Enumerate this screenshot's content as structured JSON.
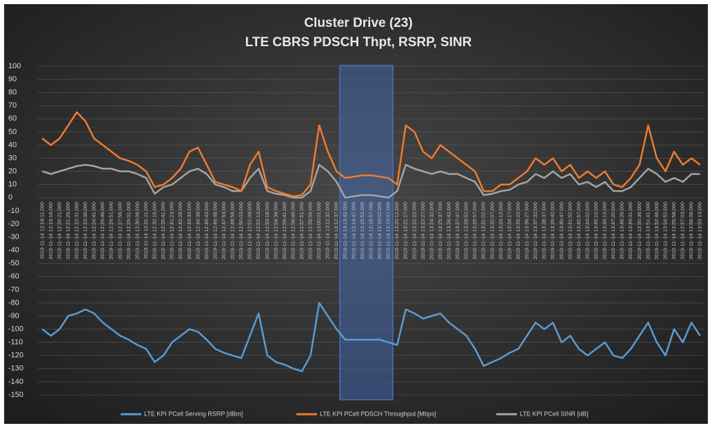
{
  "chart_data": {
    "type": "line",
    "title": "Cluster Drive (23)",
    "subtitle": "LTE CBRS PDSCH Thpt, RSRP, SINR",
    "categories": [
      "2019-11-14 12:18:11.000",
      "2019-11-14 12:19:16.000",
      "2019-11-14 12:20:21.000",
      "2019-11-14 12:21:26.000",
      "2019-11-14 12:22:31.000",
      "2019-11-14 12:23:36.000",
      "2019-11-14 12:24:41.000",
      "2019-11-14 12:25:46.000",
      "2019-11-14 12:26:51.000",
      "2019-11-14 12:27:56.000",
      "2019-11-14 12:29:01.000",
      "2019-11-14 12:30:06.000",
      "2019-11-14 12:31:11.000",
      "2019-11-14 12:32:16.000",
      "2019-11-14 12:35:41.000",
      "2019-11-14 12:41:23.000",
      "2019-11-14 12:42:28.000",
      "2019-11-14 12:43:33.000",
      "2019-11-14 12:44:38.000",
      "2019-11-14 12:45:43.000",
      "2019-11-14 12:46:48.000",
      "2019-11-14 12:47:53.000",
      "2019-11-14 12:48:58.000",
      "2019-11-14 12:50:03.000",
      "2019-11-14 12:51:08.000",
      "2019-11-14 12:52:13.000",
      "2019-11-14 12:53:18.000",
      "2019-11-14 12:54:36.000",
      "2019-11-14 12:55:41.000",
      "2019-11-14 12:56:46.000",
      "2019-11-14 12:57:51.000",
      "2019-11-14 12:58:56.000",
      "2019-11-14 13:00:01.000",
      "2019-11-14 13:11:32.000",
      "2019-11-14 13:12:37.000",
      "2019-11-14 13:13:42.000",
      "2019-11-14 13:14:47.000",
      "2019-11-14 13:15:52.000",
      "2019-11-14 13:16:57.000",
      "2019-11-14 13:18:02.000",
      "2019-11-14 13:19:07.000",
      "2019-11-14 13:20:12.000",
      "2019-11-14 13:21:17.000",
      "2019-11-14 13:22:22.000",
      "2019-11-14 13:23:27.000",
      "2019-11-14 13:24:32.000",
      "2019-11-14 13:25:37.000",
      "2019-11-14 13:26:42.000",
      "2019-11-14 13:27:47.000",
      "2019-11-14 13:28:52.000",
      "2019-11-14 13:29:57.000",
      "2019-11-14 13:31:02.000",
      "2019-11-14 13:32:07.000",
      "2019-11-14 13:33:12.000",
      "2019-11-14 13:34:17.000",
      "2019-11-14 13:35:22.000",
      "2019-11-14 13:36:27.000",
      "2019-11-14 13:37:32.000",
      "2019-11-14 13:38:37.000",
      "2019-11-14 13:39:42.000",
      "2019-11-14 13:40:47.000",
      "2019-11-14 13:41:52.000",
      "2019-11-14 13:42:57.000",
      "2019-11-14 13:44:02.000",
      "2019-11-14 13:45:10.000",
      "2019-11-14 13:46:15.000",
      "2019-11-14 13:47:20.000",
      "2019-11-14 13:48:26.000",
      "2019-11-14 13:49:31.000",
      "2019-11-14 13:50:36.000",
      "2019-11-14 13:51:41.000",
      "2019-11-14 13:52:46.000",
      "2019-11-14 13:54:52.000",
      "2019-11-14 13:55:58.000",
      "2019-11-14 13:57:03.000",
      "2019-11-14 13:58:08.000",
      "2019-11-14 13:59:13.000"
    ],
    "series": [
      {
        "name": "LTE KPI PCell Serving RSRP [dBm]",
        "color": "#5b9bd5",
        "values": [
          -100,
          -105,
          -100,
          -90,
          -88,
          -85,
          -88,
          -95,
          -100,
          -105,
          -108,
          -112,
          -115,
          -125,
          -120,
          -110,
          -105,
          -100,
          -102,
          -108,
          -115,
          -118,
          -120,
          -122,
          -105,
          -88,
          -120,
          -125,
          -127,
          -130,
          -132,
          -120,
          -80,
          -90,
          -100,
          -108,
          -108,
          -108,
          -108,
          -108,
          -110,
          -112,
          -85,
          -88,
          -92,
          -90,
          -88,
          -95,
          -100,
          -105,
          -115,
          -128,
          -125,
          -122,
          -118,
          -115,
          -105,
          -95,
          -100,
          -95,
          -110,
          -105,
          -115,
          -120,
          -115,
          -110,
          -120,
          -122,
          -115,
          -105,
          -95,
          -110,
          -120,
          -100,
          -110,
          -95,
          -105
        ]
      },
      {
        "name": "LTE KPI PCell PDSCH Throughput [Mbps]",
        "color": "#ed7d31",
        "values": [
          45,
          40,
          45,
          55,
          65,
          58,
          45,
          40,
          35,
          30,
          28,
          25,
          20,
          8,
          10,
          15,
          22,
          35,
          38,
          25,
          12,
          10,
          8,
          5,
          25,
          35,
          8,
          5,
          3,
          1,
          2,
          10,
          55,
          35,
          20,
          15,
          16,
          17,
          17,
          16,
          15,
          10,
          55,
          50,
          35,
          30,
          40,
          35,
          30,
          25,
          20,
          5,
          5,
          10,
          10,
          15,
          20,
          30,
          25,
          30,
          20,
          25,
          15,
          20,
          15,
          20,
          10,
          8,
          15,
          25,
          55,
          30,
          20,
          35,
          25,
          30,
          25
        ]
      },
      {
        "name": "LTE KPI PCell SINR [dB]",
        "color": "#a5a5a5",
        "values": [
          20,
          18,
          20,
          22,
          24,
          25,
          24,
          22,
          22,
          20,
          20,
          18,
          15,
          3,
          8,
          10,
          15,
          20,
          22,
          18,
          10,
          8,
          5,
          5,
          15,
          22,
          5,
          3,
          2,
          0,
          0,
          5,
          25,
          20,
          12,
          0,
          1,
          2,
          2,
          1,
          0,
          5,
          25,
          22,
          20,
          18,
          20,
          18,
          18,
          15,
          12,
          2,
          3,
          5,
          6,
          10,
          12,
          18,
          15,
          20,
          15,
          18,
          10,
          12,
          8,
          12,
          5,
          5,
          8,
          15,
          22,
          18,
          12,
          15,
          12,
          18,
          18
        ]
      }
    ],
    "ylim": [
      -150,
      100
    ],
    "yticks": [
      -150,
      -140,
      -130,
      -120,
      -110,
      -100,
      -90,
      -80,
      -70,
      -60,
      -50,
      -40,
      -30,
      -20,
      -10,
      0,
      10,
      20,
      30,
      40,
      50,
      60,
      70,
      80,
      90,
      100
    ],
    "grid": true,
    "legend": "bottom"
  }
}
